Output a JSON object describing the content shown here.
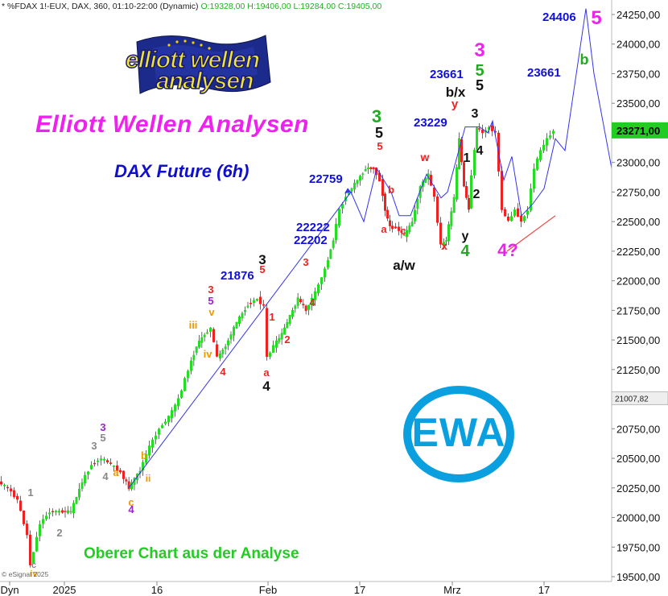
{
  "header": {
    "text": "* %FDAX 1!-EUX, DAX, 360, 01:10-22:00 (Dynamic)",
    "ohlc": "O:19328,00 H:19406,00 L:19284,00 C:19405,00"
  },
  "title": "Elliott Wellen Analysen",
  "subtitle": "DAX Future (6h)",
  "footer_note": "Oberer Chart aus der Analyse",
  "copyright": "© eSignal 2025",
  "logo": {
    "line1": "elliott wellen",
    "line2": "analysen"
  },
  "ewa_badge": "EWA",
  "colors": {
    "up": "#22dd22",
    "down": "#ee2222",
    "projection": "#3333ee",
    "support": "#ee4444",
    "title": "#ee22ee",
    "subtitle": "#1010cc",
    "footer": "#22cc22",
    "price_box": "#22cc22",
    "ewa": "#0aa0e0"
  },
  "chart_data": {
    "type": "candlestick",
    "y_axis": {
      "min": 19500,
      "max": 24250,
      "ticks": [
        "24250,00",
        "24000,00",
        "23750,00",
        "23500,00",
        "23250,00",
        "23000,00",
        "22750,00",
        "22500,00",
        "22250,00",
        "22000,00",
        "21750,00",
        "21500,00",
        "21250,00",
        "21007,82",
        "20750,00",
        "20500,00",
        "20250,00",
        "20000,00",
        "19750,00",
        "19500,00"
      ]
    },
    "x_axis": {
      "labels": [
        "Dyn",
        "2025",
        "16",
        "Feb",
        "17",
        "Mrz",
        "17"
      ]
    },
    "last_price": "23271,00",
    "ref_price": "21007,82",
    "price_path": [
      [
        0,
        20300
      ],
      [
        12,
        20250
      ],
      [
        24,
        20150
      ],
      [
        36,
        19850
      ],
      [
        40,
        19600
      ],
      [
        52,
        19950
      ],
      [
        64,
        20050
      ],
      [
        76,
        20050
      ],
      [
        90,
        20050
      ],
      [
        104,
        20300
      ],
      [
        116,
        20450
      ],
      [
        128,
        20500
      ],
      [
        140,
        20450
      ],
      [
        152,
        20380
      ],
      [
        162,
        20250
      ],
      [
        176,
        20400
      ],
      [
        188,
        20600
      ],
      [
        200,
        20750
      ],
      [
        212,
        20850
      ],
      [
        224,
        21000
      ],
      [
        236,
        21250
      ],
      [
        246,
        21450
      ],
      [
        256,
        21550
      ],
      [
        264,
        21600
      ],
      [
        272,
        21350
      ],
      [
        282,
        21450
      ],
      [
        296,
        21650
      ],
      [
        310,
        21800
      ],
      [
        322,
        21850
      ],
      [
        330,
        21780
      ],
      [
        334,
        21350
      ],
      [
        342,
        21450
      ],
      [
        352,
        21550
      ],
      [
        362,
        21700
      ],
      [
        372,
        21850
      ],
      [
        382,
        21750
      ],
      [
        394,
        21900
      ],
      [
        406,
        22100
      ],
      [
        416,
        22350
      ],
      [
        424,
        22600
      ],
      [
        432,
        22720
      ],
      [
        446,
        22850
      ],
      [
        456,
        22950
      ],
      [
        466,
        22950
      ],
      [
        474,
        22850
      ],
      [
        480,
        22600
      ],
      [
        486,
        22450
      ],
      [
        494,
        22450
      ],
      [
        504,
        22380
      ],
      [
        514,
        22500
      ],
      [
        524,
        22800
      ],
      [
        534,
        22900
      ],
      [
        542,
        22700
      ],
      [
        550,
        22300
      ],
      [
        556,
        22350
      ],
      [
        566,
        22700
      ],
      [
        572,
        23200
      ],
      [
        578,
        22800
      ],
      [
        584,
        22600
      ],
      [
        588,
        22900
      ],
      [
        594,
        23300
      ],
      [
        602,
        23250
      ],
      [
        610,
        23300
      ],
      [
        618,
        23250
      ],
      [
        626,
        22600
      ],
      [
        634,
        22500
      ],
      [
        642,
        22600
      ],
      [
        650,
        22500
      ],
      [
        658,
        22600
      ],
      [
        666,
        22950
      ],
      [
        674,
        23100
      ],
      [
        682,
        23200
      ],
      [
        690,
        23271
      ]
    ],
    "projection_path": [
      [
        160,
        20250
      ],
      [
        436,
        22750
      ],
      [
        452,
        22500
      ],
      [
        468,
        22950
      ],
      [
        486,
        22750
      ],
      [
        496,
        22550
      ],
      [
        510,
        22550
      ],
      [
        530,
        22900
      ],
      [
        548,
        22700
      ],
      [
        556,
        22750
      ],
      [
        568,
        23050
      ],
      [
        578,
        23300
      ],
      [
        596,
        23300
      ],
      [
        606,
        23250
      ],
      [
        612,
        23350
      ],
      [
        626,
        22850
      ],
      [
        636,
        23050
      ],
      [
        648,
        22550
      ],
      [
        662,
        22650
      ],
      [
        676,
        22780
      ],
      [
        690,
        23200
      ],
      [
        702,
        23100
      ],
      [
        728,
        24300
      ],
      [
        738,
        23750
      ],
      [
        760,
        22950
      ]
    ],
    "support_line": [
      [
        630,
        22250
      ],
      [
        690,
        22550
      ]
    ],
    "price_annotations": [
      {
        "text": "24406",
        "price": 24406
      },
      {
        "text": "23661",
        "price": 23661
      },
      {
        "text": "23661",
        "price": 23661
      },
      {
        "text": "23229",
        "price": 23229
      },
      {
        "text": "22759",
        "price": 22759
      },
      {
        "text": "22222",
        "price": 22222
      },
      {
        "text": "22202",
        "price": 22202
      },
      {
        "text": "21876",
        "price": 21876
      }
    ],
    "wave_labels": [
      {
        "text": "5",
        "color": "#ee22ee"
      },
      {
        "text": "b",
        "color": "#22aa22"
      },
      {
        "text": "3",
        "color": "#ee22ee"
      },
      {
        "text": "5",
        "color": "#22aa22"
      },
      {
        "text": "b/x",
        "color": "#111111"
      },
      {
        "text": "5",
        "color": "#111111"
      },
      {
        "text": "y",
        "color": "#ee2222"
      },
      {
        "text": "3",
        "color": "#111111"
      },
      {
        "text": "4",
        "color": "#111111"
      },
      {
        "text": "1",
        "color": "#111111"
      },
      {
        "text": "2",
        "color": "#111111"
      },
      {
        "text": "y",
        "color": "#111111"
      },
      {
        "text": "4",
        "color": "#22aa22"
      },
      {
        "text": "4?",
        "color": "#ee22ee"
      },
      {
        "text": "w",
        "color": "#ee2222"
      },
      {
        "text": "x",
        "color": "#ee2222"
      },
      {
        "text": "3",
        "color": "#22aa22"
      },
      {
        "text": "5",
        "color": "#111111"
      },
      {
        "text": "5",
        "color": "#ee2222"
      },
      {
        "text": "b",
        "color": "#ee2222"
      },
      {
        "text": "a",
        "color": "#ee2222"
      },
      {
        "text": "c",
        "color": "#ee2222"
      },
      {
        "text": "a/w",
        "color": "#111111"
      },
      {
        "text": "3",
        "color": "#111111"
      },
      {
        "text": "5",
        "color": "#ee2222"
      },
      {
        "text": "3",
        "color": "#ee2222"
      },
      {
        "text": "1",
        "color": "#ee2222"
      },
      {
        "text": "2",
        "color": "#ee2222"
      },
      {
        "text": "4",
        "color": "#ee2222"
      },
      {
        "text": "a",
        "color": "#ee2222"
      },
      {
        "text": "4",
        "color": "#111111"
      },
      {
        "text": "3",
        "color": "#ee2222"
      },
      {
        "text": "5",
        "color": "#9922cc"
      },
      {
        "text": "v",
        "color": "#ee9900"
      },
      {
        "text": "iii",
        "color": "#ee9900"
      },
      {
        "text": "iv",
        "color": "#ee9900"
      },
      {
        "text": "4",
        "color": "#ee2222"
      },
      {
        "text": "3",
        "color": "#9922cc"
      },
      {
        "text": "5",
        "color": "#888888"
      },
      {
        "text": "3",
        "color": "#888888"
      },
      {
        "text": "4",
        "color": "#888888"
      },
      {
        "text": "a",
        "color": "#ee9900"
      },
      {
        "text": "b",
        "color": "#ee9900"
      },
      {
        "text": "ii",
        "color": "#ee9900"
      },
      {
        "text": "c",
        "color": "#ee9900"
      },
      {
        "text": "4",
        "color": "#9922cc"
      },
      {
        "text": "1",
        "color": "#888888"
      },
      {
        "text": "2",
        "color": "#888888"
      },
      {
        "text": "c",
        "color": "#888888"
      },
      {
        "text": "iv",
        "color": "#ee9900"
      }
    ]
  }
}
